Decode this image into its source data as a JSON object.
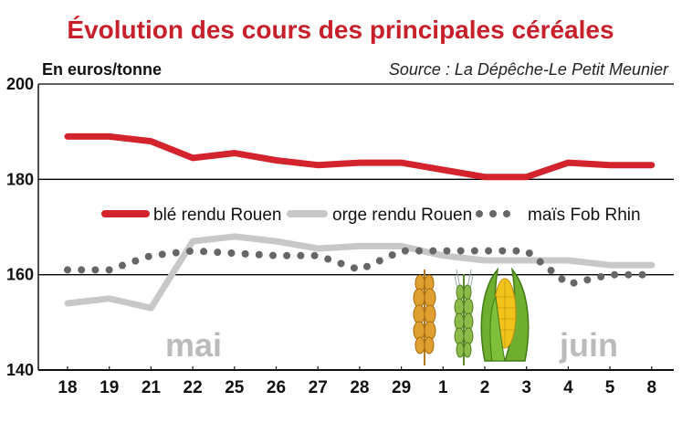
{
  "chart_data": {
    "type": "line",
    "title": "Évolution des cours des principales céréales",
    "unit_label": "En euros/tonne",
    "source": "Source : La Dépêche-Le Petit Meunier",
    "categories": [
      "18",
      "19",
      "21",
      "22",
      "25",
      "26",
      "27",
      "28",
      "29",
      "1",
      "2",
      "3",
      "4",
      "5",
      "8"
    ],
    "month_labels": [
      "mai",
      "juin"
    ],
    "ylim": [
      140,
      200
    ],
    "yticks": [
      140,
      160,
      180,
      200
    ],
    "grid": "horizontal",
    "legend_position": "middle",
    "series": [
      {
        "name": "blé rendu Rouen",
        "color": "#d3232c",
        "style": "solid",
        "values": [
          189,
          189,
          188,
          184.5,
          185.5,
          184,
          183,
          183.5,
          183.5,
          182,
          180.5,
          180.5,
          183.5,
          183,
          183
        ]
      },
      {
        "name": "orge rendu Rouen",
        "color": "#c8c8c8",
        "style": "solid",
        "values": [
          154,
          155,
          153,
          167,
          168,
          167,
          165.5,
          166,
          166,
          164,
          163,
          163,
          163,
          162,
          162
        ]
      },
      {
        "name": "maïs Fob Rhin",
        "color": "#666666",
        "style": "dotted",
        "values": [
          161,
          161,
          164,
          165,
          164.5,
          164,
          164,
          161,
          165,
          165,
          165,
          165,
          158,
          160,
          160
        ]
      }
    ],
    "colors": {
      "title": "#c8202a",
      "month_label": "#bbbbbb",
      "grid": "#000000"
    }
  }
}
